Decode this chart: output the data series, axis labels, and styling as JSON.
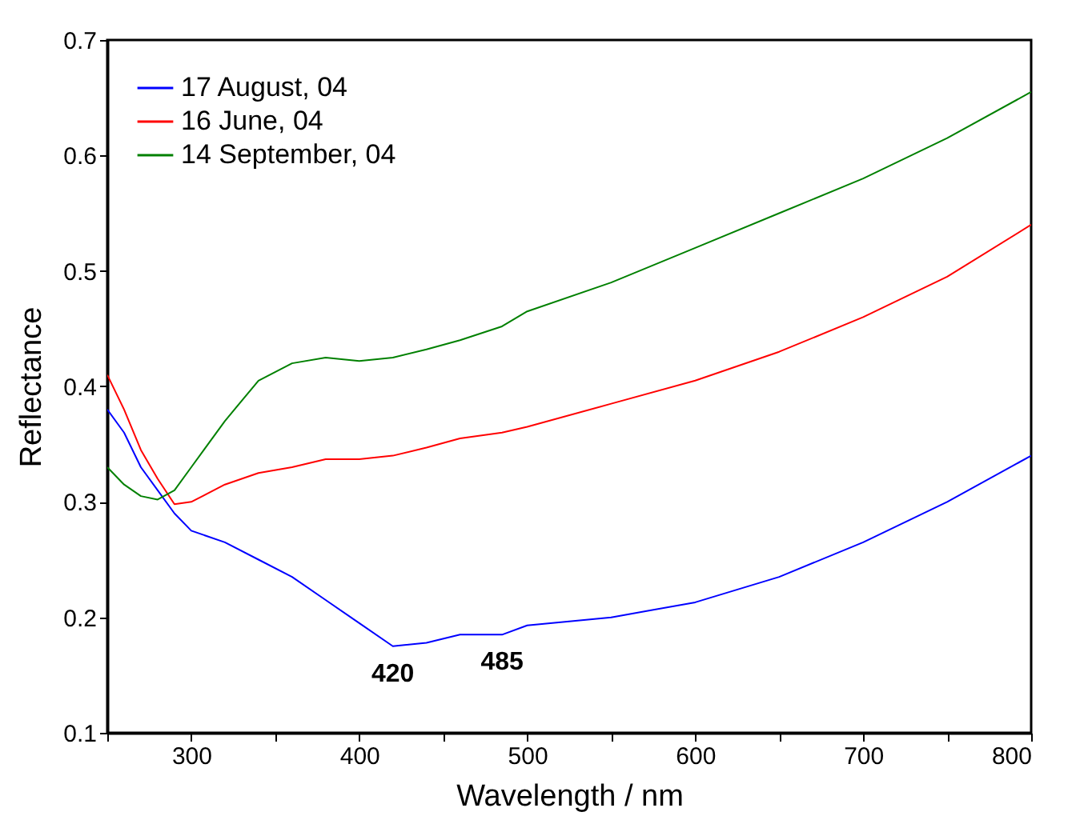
{
  "chart_data": {
    "type": "line",
    "xlabel": "Wavelength / nm",
    "ylabel": "Reflectance",
    "x": [
      250,
      260,
      270,
      280,
      290,
      300,
      320,
      340,
      360,
      380,
      400,
      420,
      440,
      460,
      485,
      500,
      550,
      600,
      650,
      700,
      750,
      800
    ],
    "series": [
      {
        "name": "17 August, 04",
        "color": "#0000ff",
        "values": [
          0.38,
          0.36,
          0.33,
          0.31,
          0.29,
          0.275,
          0.265,
          0.25,
          0.235,
          0.215,
          0.195,
          0.175,
          0.178,
          0.185,
          0.185,
          0.193,
          0.2,
          0.213,
          0.235,
          0.265,
          0.3,
          0.34
        ]
      },
      {
        "name": "16 June, 04",
        "color": "#ff0000",
        "values": [
          0.41,
          0.38,
          0.345,
          0.32,
          0.298,
          0.3,
          0.315,
          0.325,
          0.33,
          0.337,
          0.337,
          0.34,
          0.347,
          0.355,
          0.36,
          0.365,
          0.385,
          0.405,
          0.43,
          0.46,
          0.495,
          0.54
        ]
      },
      {
        "name": "14 September, 04",
        "color": "#008000",
        "values": [
          0.33,
          0.315,
          0.305,
          0.302,
          0.31,
          0.33,
          0.37,
          0.405,
          0.42,
          0.425,
          0.422,
          0.425,
          0.432,
          0.44,
          0.452,
          0.465,
          0.49,
          0.52,
          0.55,
          0.58,
          0.615,
          0.655
        ]
      }
    ],
    "xlim": [
      250,
      800
    ],
    "ylim": [
      0.1,
      0.7
    ],
    "xticks": [
      {
        "value": 250,
        "label": null
      },
      300,
      {
        "value": 350,
        "label": null
      },
      400,
      {
        "value": 450,
        "label": null
      },
      500,
      {
        "value": 550,
        "label": null
      },
      600,
      {
        "value": 650,
        "label": null
      },
      700,
      {
        "value": 750,
        "label": null
      },
      800
    ],
    "yticks": [
      0.1,
      0.2,
      0.3,
      0.4,
      0.5,
      0.6,
      0.7
    ],
    "annotations": [
      {
        "text": "420",
        "x": 420,
        "y": 0.175
      },
      {
        "text": "485",
        "x": 485,
        "y": 0.185
      }
    ],
    "legend": "top left",
    "grid": false,
    "line_style": "solid",
    "marker": "none"
  }
}
